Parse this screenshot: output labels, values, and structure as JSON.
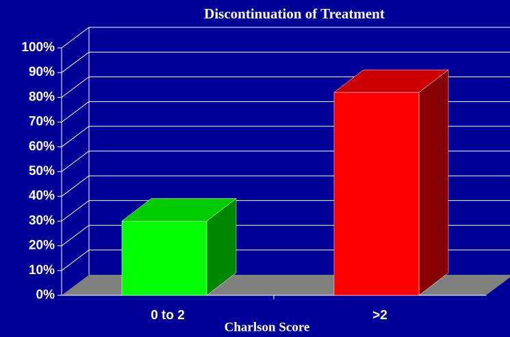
{
  "chart_data": {
    "type": "bar3d",
    "title": "Discontinuation of Treatment",
    "x_label": "Charlson Score",
    "categories": [
      "0 to 2",
      ">2"
    ],
    "values": [
      30,
      82
    ],
    "colors": [
      "#00ff00",
      "#ff0000"
    ],
    "ylim": [
      0,
      100
    ],
    "yticks": [
      {
        "value": 0,
        "label": "0%"
      },
      {
        "value": 10,
        "label": "10%"
      },
      {
        "value": 20,
        "label": "20%"
      },
      {
        "value": 30,
        "label": "30%"
      },
      {
        "value": 40,
        "label": "40%"
      },
      {
        "value": 50,
        "label": "50%"
      },
      {
        "value": 60,
        "label": "60%"
      },
      {
        "value": 70,
        "label": "70%"
      },
      {
        "value": 80,
        "label": "80%"
      },
      {
        "value": 90,
        "label": "90%"
      },
      {
        "value": 100,
        "label": "100%"
      }
    ],
    "grid": true
  }
}
